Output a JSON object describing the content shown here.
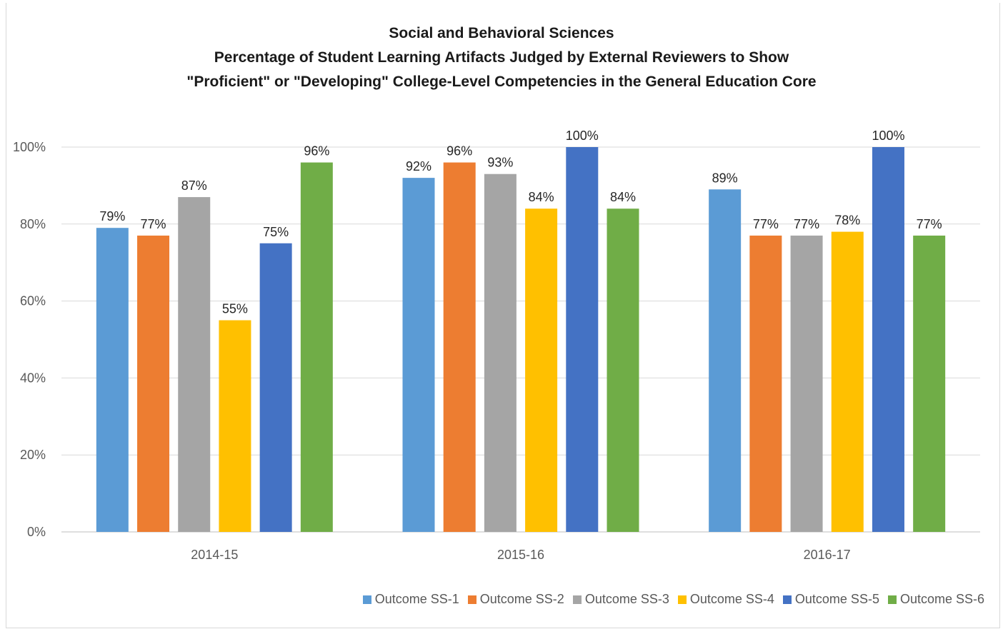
{
  "chart_data": {
    "type": "bar",
    "title_lines": [
      "Social and Behavioral Sciences",
      "Percentage of Student Learning Artifacts Judged by External Reviewers to Show",
      "\"Proficient\" or \"Developing\" College-Level Competencies in the General Education Core"
    ],
    "categories": [
      "2014-15",
      "2015-16",
      "2016-17"
    ],
    "series": [
      {
        "name": "Outcome SS-1",
        "color": "#5b9bd5",
        "values": [
          79,
          92,
          89
        ],
        "labels": [
          "79%",
          "92%",
          "89%"
        ]
      },
      {
        "name": "Outcome SS-2",
        "color": "#ed7d31",
        "values": [
          77,
          96,
          77
        ],
        "labels": [
          "77%",
          "96%",
          "77%"
        ]
      },
      {
        "name": "Outcome SS-3",
        "color": "#a5a5a5",
        "values": [
          87,
          93,
          77
        ],
        "labels": [
          "87%",
          "93%",
          "77%"
        ]
      },
      {
        "name": "Outcome SS-4",
        "color": "#ffc000",
        "values": [
          55,
          84,
          78
        ],
        "labels": [
          "55%",
          "84%",
          "78%"
        ]
      },
      {
        "name": "Outcome SS-5",
        "color": "#4472c4",
        "values": [
          75,
          100,
          100
        ],
        "labels": [
          "75%",
          "100%",
          "100%"
        ]
      },
      {
        "name": "Outcome SS-6",
        "color": "#70ad47",
        "values": [
          96,
          84,
          77
        ],
        "labels": [
          "96%",
          "84%",
          "77%"
        ]
      }
    ],
    "y_ticks": [
      "0%",
      "20%",
      "40%",
      "60%",
      "80%",
      "100%"
    ],
    "ylim": [
      0,
      100
    ],
    "grid": true,
    "legend_position": "bottom"
  }
}
